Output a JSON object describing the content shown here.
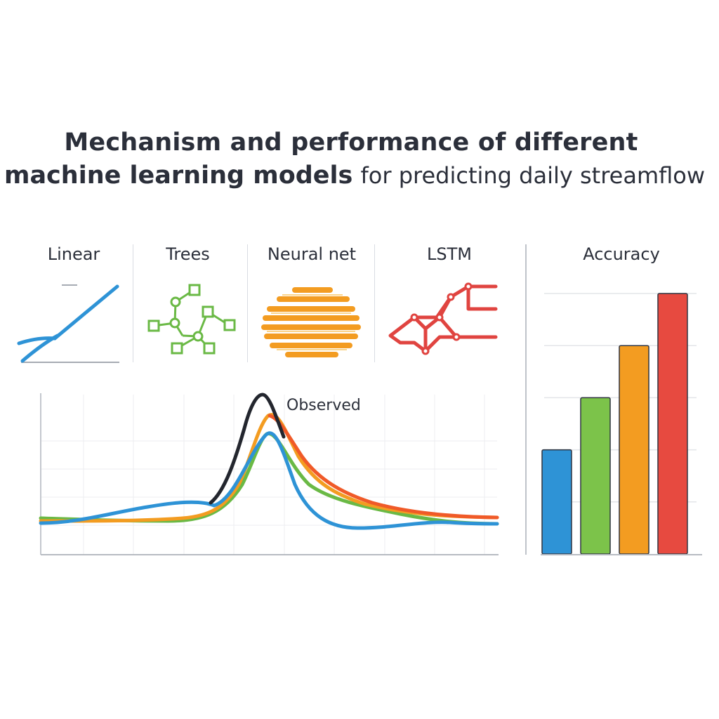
{
  "title": {
    "line1": "Mechanism and performance of different",
    "line2_bold": "machine learning models",
    "line2_regular": "for predicting daily streamflow"
  },
  "models": [
    {
      "label": "Linear",
      "icon": "linear-trend-icon",
      "color": "#2e93d6"
    },
    {
      "label": "Trees",
      "icon": "decision-tree-icon",
      "color": "#6ab945"
    },
    {
      "label": "Neural net",
      "icon": "neural-net-icon",
      "color": "#f39c21"
    },
    {
      "label": "LSTM",
      "icon": "lstm-network-icon",
      "color": "#e04440"
    }
  ],
  "hydrograph": {
    "annotation": "Observed",
    "colors": {
      "observed": "#23262e",
      "blue": "#2e93d6",
      "green": "#6ab945",
      "orange": "#f39c21",
      "red": "#f05a28"
    }
  },
  "accuracy": {
    "label": "Accuracy",
    "chart_data": {
      "type": "bar",
      "values": [
        2,
        3,
        4,
        5
      ],
      "colors": [
        "#2e93d6",
        "#7cc34a",
        "#f39c21",
        "#e74a40"
      ],
      "ylim": [
        0,
        5
      ]
    }
  }
}
